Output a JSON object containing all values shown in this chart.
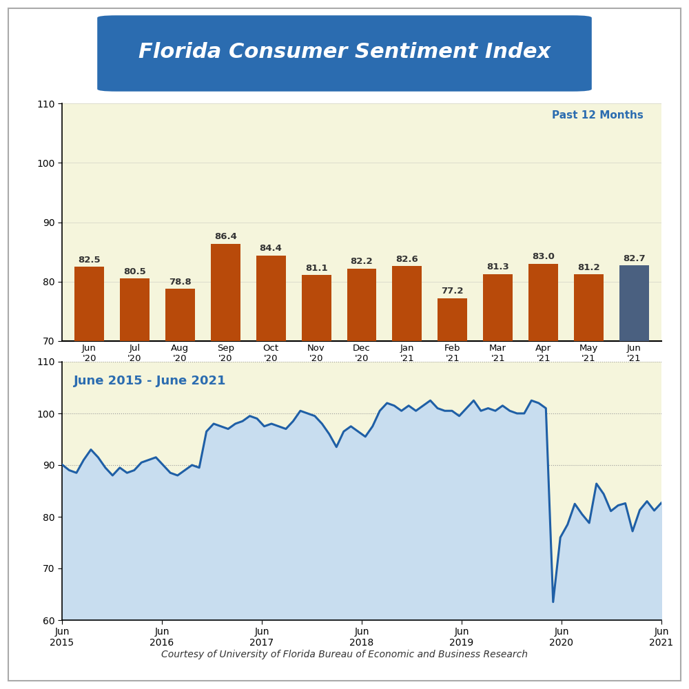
{
  "title": "Florida Consumer Sentiment Index",
  "title_bg_color": "#2B6CB0",
  "title_text_color": "#FFFFFF",
  "bar_categories": [
    "Jun\n'20",
    "Jul\n'20",
    "Aug\n'20",
    "Sep\n'20",
    "Oct\n'20",
    "Nov\n'20",
    "Dec\n'20",
    "Jan\n'21",
    "Feb\n'21",
    "Mar\n'21",
    "Apr\n'21",
    "May\n'21",
    "Jun\n'21"
  ],
  "bar_values": [
    82.5,
    80.5,
    78.8,
    86.4,
    84.4,
    81.1,
    82.2,
    82.6,
    77.2,
    81.3,
    83.0,
    81.2,
    82.7
  ],
  "bar_colors": [
    "#B84A0A",
    "#B84A0A",
    "#B84A0A",
    "#B84A0A",
    "#B84A0A",
    "#B84A0A",
    "#B84A0A",
    "#B84A0A",
    "#B84A0A",
    "#B84A0A",
    "#B84A0A",
    "#B84A0A",
    "#4A6080"
  ],
  "bar_ylim": [
    70,
    110
  ],
  "bar_yticks": [
    70,
    80,
    90,
    100,
    110
  ],
  "bar_bg_color": "#F5F5DC",
  "bar_label": "Past 12 Months",
  "bar_label_color": "#2B6CB0",
  "line_label": "June 2015 - June 2021",
  "line_label_color": "#2B6CB0",
  "line_color": "#1F5FA6",
  "line_fill_color": "#C8DDEF",
  "line_ylim": [
    60,
    110
  ],
  "line_yticks": [
    60,
    70,
    80,
    90,
    100,
    110
  ],
  "line_bg_color": "#F5F5DC",
  "line_hlines": [
    90,
    100,
    110
  ],
  "line_xtick_positions": [
    0,
    12,
    24,
    36,
    48,
    60,
    72
  ],
  "line_xtick_labels": [
    "Jun\n2015",
    "Jun\n2016",
    "Jun\n2017",
    "Jun\n2018",
    "Jun\n2019",
    "Jun\n2020",
    "Jun\n2021"
  ],
  "line_data": [
    90.1,
    89.0,
    88.5,
    91.0,
    93.0,
    91.5,
    89.5,
    88.0,
    89.5,
    88.5,
    89.0,
    90.5,
    91.0,
    91.5,
    90.0,
    88.5,
    88.0,
    89.0,
    90.0,
    89.5,
    96.5,
    98.0,
    97.5,
    97.0,
    98.0,
    98.5,
    99.5,
    99.0,
    97.5,
    98.0,
    97.5,
    97.0,
    98.5,
    100.5,
    100.0,
    99.5,
    98.0,
    96.0,
    93.5,
    96.5,
    97.5,
    96.5,
    95.5,
    97.5,
    100.5,
    102.0,
    101.5,
    100.5,
    101.5,
    100.5,
    101.5,
    102.5,
    101.0,
    100.5,
    100.5,
    99.5,
    101.0,
    102.5,
    100.5,
    101.0,
    100.5,
    101.5,
    100.5,
    100.0,
    100.0,
    102.5,
    102.0,
    101.0,
    63.5,
    76.0,
    78.5,
    82.5,
    80.5,
    78.8,
    86.4,
    84.4,
    81.1,
    82.2,
    82.6,
    77.2,
    81.3,
    83.0,
    81.2,
    82.7
  ],
  "footnote": "Courtesy of University of Florida Bureau of Economic and Business Research",
  "footnote_color": "#333333"
}
